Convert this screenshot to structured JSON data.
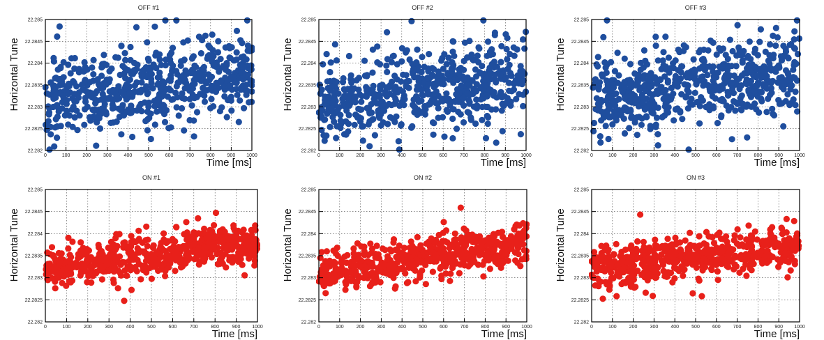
{
  "chart_data": [
    {
      "type": "scatter",
      "title": "OFF #1",
      "xlabel": "Time [ms]",
      "ylabel": "Horizontal Tune",
      "xlim": [
        0,
        1000
      ],
      "ylim": [
        22.282,
        22.285
      ],
      "xticks": [
        "0",
        "100",
        "200",
        "300",
        "400",
        "500",
        "600",
        "700",
        "800",
        "900",
        "1000"
      ],
      "yticks": [
        "22.282",
        "22.2825",
        "22.283",
        "22.2835",
        "22.284",
        "22.2845",
        "22.285"
      ],
      "grid": true,
      "marker_color": "#1f4e9e",
      "series": [
        {
          "name": "OFF #1",
          "points_n": 600,
          "trend_start": 22.2832,
          "trend_end": 22.2838,
          "spread": 0.00045,
          "seed": 11
        }
      ]
    },
    {
      "type": "scatter",
      "title": "OFF #2",
      "xlabel": "Time [ms]",
      "ylabel": "Horizontal Tune",
      "xlim": [
        0,
        1000
      ],
      "ylim": [
        22.282,
        22.285
      ],
      "xticks": [
        "0",
        "100",
        "200",
        "300",
        "400",
        "500",
        "600",
        "700",
        "800",
        "900",
        "1000"
      ],
      "yticks": [
        "22.282",
        "22.2825",
        "22.283",
        "22.2835",
        "22.284",
        "22.2845",
        "22.285"
      ],
      "grid": true,
      "marker_color": "#1f4e9e",
      "series": [
        {
          "name": "OFF #2",
          "points_n": 600,
          "trend_start": 22.2831,
          "trend_end": 22.2837,
          "spread": 0.00045,
          "seed": 23
        }
      ]
    },
    {
      "type": "scatter",
      "title": "OFF #3",
      "xlabel": "Time [ms]",
      "ylabel": "Horizontal Tune",
      "xlim": [
        0,
        1000
      ],
      "ylim": [
        22.282,
        22.285
      ],
      "xticks": [
        "0",
        "100",
        "200",
        "300",
        "400",
        "500",
        "600",
        "700",
        "800",
        "900",
        "1000"
      ],
      "yticks": [
        "22.282",
        "22.2825",
        "22.283",
        "22.2835",
        "22.284",
        "22.2845",
        "22.285"
      ],
      "grid": true,
      "marker_color": "#1f4e9e",
      "series": [
        {
          "name": "OFF #3",
          "points_n": 600,
          "trend_start": 22.2832,
          "trend_end": 22.2838,
          "spread": 0.00045,
          "seed": 37
        }
      ]
    },
    {
      "type": "scatter",
      "title": "ON #1",
      "xlabel": "Time [ms]",
      "ylabel": "Horizontal Tune",
      "xlim": [
        0,
        1000
      ],
      "ylim": [
        22.282,
        22.285
      ],
      "xticks": [
        "0",
        "100",
        "200",
        "300",
        "400",
        "500",
        "600",
        "700",
        "800",
        "900",
        "1000"
      ],
      "yticks": [
        "22.282",
        "22.2825",
        "22.283",
        "22.2835",
        "22.284",
        "22.2845",
        "22.285"
      ],
      "grid": true,
      "marker_color": "#e8201a",
      "series": [
        {
          "name": "ON #1",
          "points_n": 600,
          "trend_start": 22.2832,
          "trend_end": 22.2838,
          "spread": 0.00022,
          "seed": 41
        }
      ]
    },
    {
      "type": "scatter",
      "title": "ON #2",
      "xlabel": "Time [ms]",
      "ylabel": "Horizontal Tune",
      "xlim": [
        0,
        1000
      ],
      "ylim": [
        22.282,
        22.285
      ],
      "xticks": [
        "0",
        "100",
        "200",
        "300",
        "400",
        "500",
        "600",
        "700",
        "800",
        "900",
        "1000"
      ],
      "yticks": [
        "22.282",
        "22.2825",
        "22.283",
        "22.2835",
        "22.284",
        "22.2845",
        "22.285"
      ],
      "grid": true,
      "marker_color": "#e8201a",
      "series": [
        {
          "name": "ON #2",
          "points_n": 600,
          "trend_start": 22.2831,
          "trend_end": 22.2838,
          "spread": 0.00022,
          "seed": 53
        }
      ]
    },
    {
      "type": "scatter",
      "title": "ON #3",
      "xlabel": "Time [ms]",
      "ylabel": "Horizontal Tune",
      "xlim": [
        0,
        1000
      ],
      "ylim": [
        22.282,
        22.285
      ],
      "xticks": [
        "0",
        "100",
        "200",
        "300",
        "400",
        "500",
        "600",
        "700",
        "800",
        "900",
        "1000"
      ],
      "yticks": [
        "22.282",
        "22.2825",
        "22.283",
        "22.2835",
        "22.284",
        "22.2845",
        "22.285"
      ],
      "grid": true,
      "marker_color": "#e8201a",
      "series": [
        {
          "name": "ON #3",
          "points_n": 600,
          "trend_start": 22.2832,
          "trend_end": 22.2837,
          "spread": 0.00022,
          "seed": 67
        }
      ]
    }
  ]
}
